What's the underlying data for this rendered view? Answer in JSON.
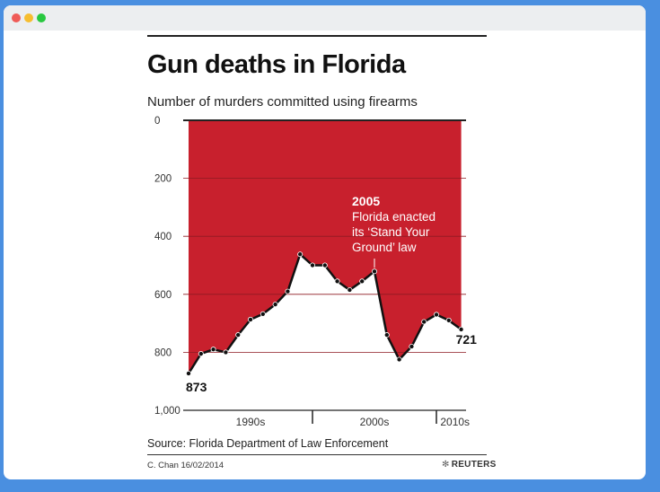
{
  "window": {
    "controls": [
      "close",
      "minimize",
      "maximize"
    ]
  },
  "chart_data": {
    "type": "area",
    "title": "Gun deaths in Florida",
    "subtitle": "Number of murders committed using firearms",
    "y_axis": {
      "inverted": true,
      "ylim": [
        0,
        1000
      ],
      "ticks": [
        "0",
        "200",
        "400",
        "600",
        "800",
        "1,000"
      ],
      "tick_values": [
        0,
        200,
        400,
        600,
        800,
        1000
      ],
      "grid": true
    },
    "x_axis": {
      "xlim": [
        1990,
        2013
      ],
      "decades": [
        {
          "label": "1990s",
          "start": 1990,
          "end": 2000
        },
        {
          "label": "2000s",
          "start": 2000,
          "end": 2010
        },
        {
          "label": "2010s",
          "start": 2010,
          "end": 2013
        }
      ]
    },
    "series": [
      {
        "x": [
          1990,
          1991,
          1992,
          1993,
          1994,
          1995,
          1996,
          1997,
          1998,
          1999,
          2000,
          2001,
          2002,
          2003,
          2004,
          2005,
          2006,
          2007,
          2008,
          2009,
          2010,
          2011,
          2012
        ],
        "y": [
          873,
          805,
          790,
          800,
          740,
          687,
          668,
          635,
          590,
          462,
          500,
          500,
          555,
          585,
          555,
          521,
          740,
          825,
          780,
          695,
          670,
          690,
          721
        ]
      }
    ],
    "fill_color": "#c8202d",
    "line_color": "#111111",
    "point_labels": [
      {
        "x": 1990,
        "text": "873"
      },
      {
        "x": 2012,
        "text": "721"
      }
    ],
    "annotation": {
      "x": 2005,
      "year": "2005",
      "lines": [
        "Florida enacted",
        "its ‘Stand Your",
        "Ground’ law"
      ]
    },
    "source": "Source: Florida Department of Law Enforcement",
    "credit": "C. Chan  16/02/2014",
    "brand": "REUTERS",
    "brand_icon": "reuters-dot-logo"
  }
}
